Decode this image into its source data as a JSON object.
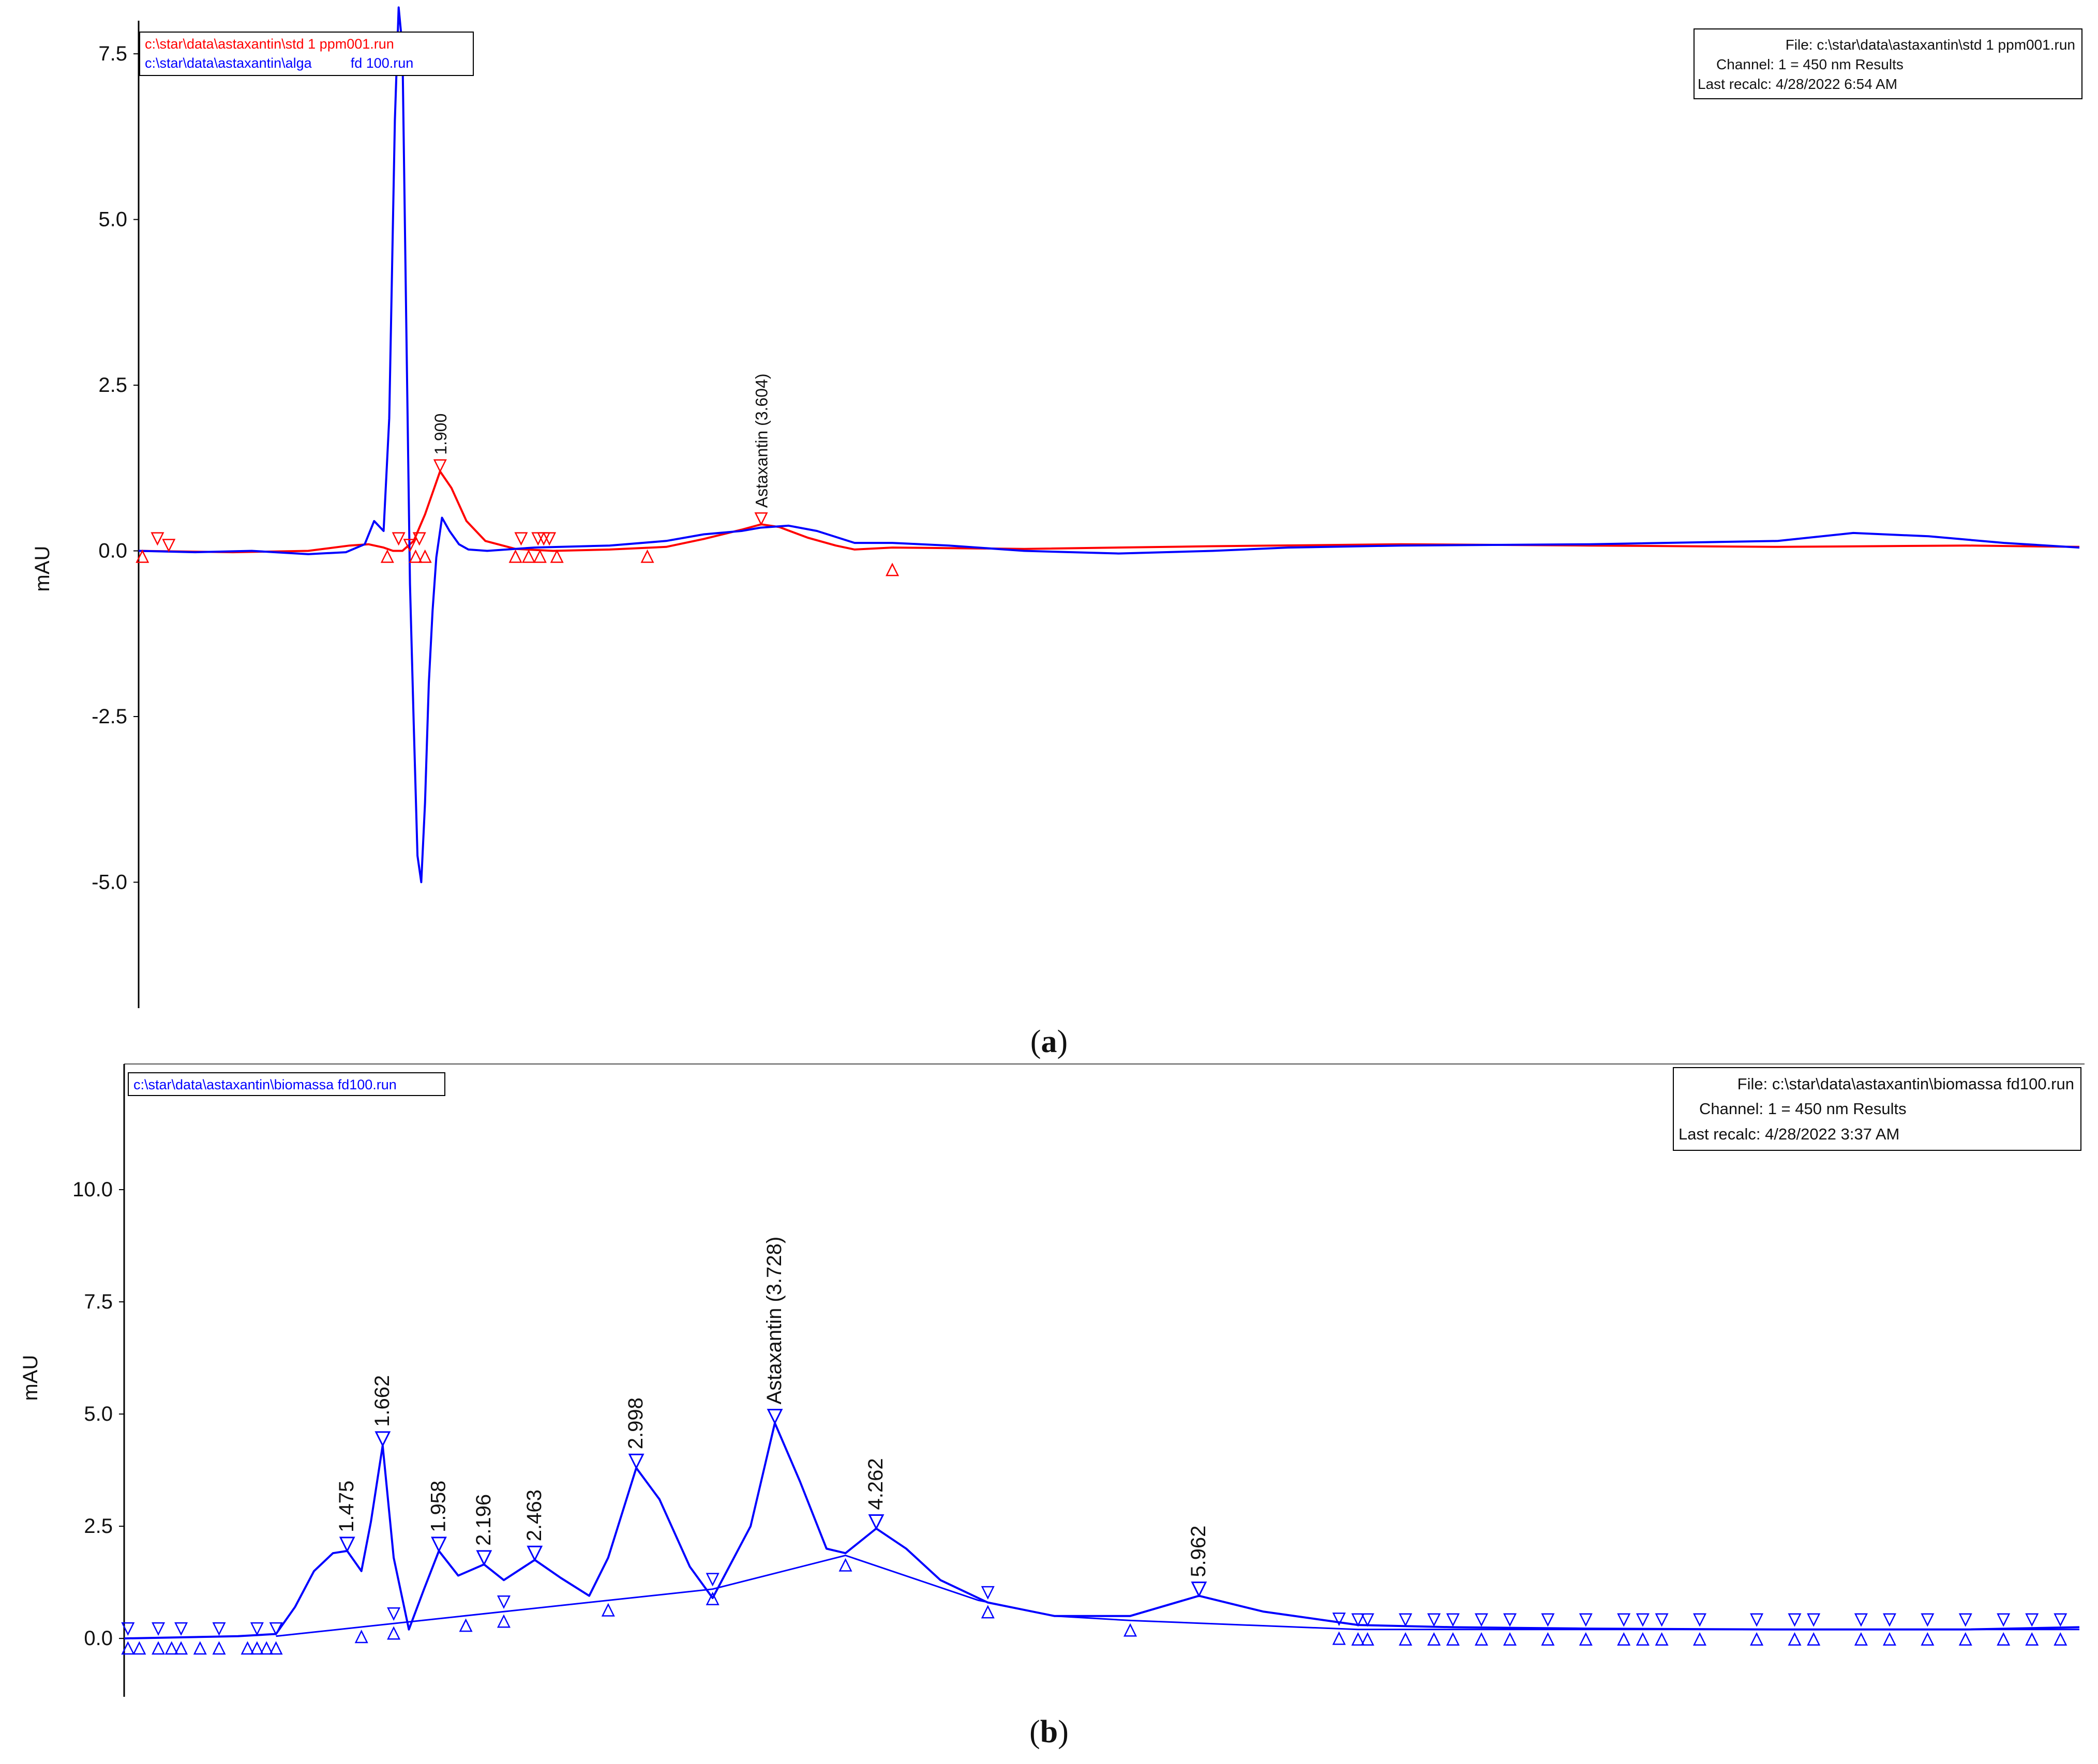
{
  "chart_data": [
    {
      "type": "line",
      "panel": "a",
      "caption_label": "a",
      "ylabel": "mAU",
      "ylim": [
        -6.9,
        8
      ],
      "xlim": [
        0.3,
        10.6
      ],
      "yticks": [
        "7.5",
        "5.0",
        "2.5",
        "0.0",
        "-2.5",
        "-5.0"
      ],
      "yticks_values": [
        7.5,
        5.0,
        2.5,
        0.0,
        -2.5,
        -5.0
      ],
      "legend_position": "top-left",
      "legend": [
        {
          "name": "c:\\star\\data\\astaxantin\\std 1 ppm001.run",
          "color": "#ff0000"
        },
        {
          "name": "c:\\star\\data\\astaxantin\\alga          fd 100.run",
          "color": "#0000ff"
        }
      ],
      "info_box": {
        "file": "File: c:\\star\\data\\astaxantin\\std 1 ppm001.run",
        "channel": "Channel: 1 = 450 nm Results",
        "recalc": "Last recalc: 4/28/2022 6:54 AM"
      },
      "series": [
        {
          "name": "c:\\star\\data\\astaxantin\\std 1 ppm001.run",
          "color": "#ff0000",
          "x": [
            0.3,
            0.8,
            1.2,
            1.42,
            1.52,
            1.6,
            1.65,
            1.7,
            1.76,
            1.82,
            1.9,
            1.96,
            2.04,
            2.14,
            2.3,
            2.5,
            2.8,
            3.1,
            3.3,
            3.5,
            3.604,
            3.7,
            3.85,
            4.0,
            4.1,
            4.3,
            5.0,
            6.0,
            7.0,
            8.0,
            9.0,
            10.0,
            10.6
          ],
          "y": [
            0.0,
            -0.02,
            0.0,
            0.08,
            0.1,
            0.05,
            0.0,
            0.0,
            0.15,
            0.55,
            1.2,
            0.95,
            0.45,
            0.15,
            0.03,
            0.0,
            0.02,
            0.06,
            0.18,
            0.32,
            0.4,
            0.36,
            0.2,
            0.08,
            0.02,
            0.05,
            0.03,
            0.07,
            0.1,
            0.08,
            0.06,
            0.08,
            0.06
          ]
        },
        {
          "name": "c:\\star\\data\\astaxantin\\alga          fd 100.run",
          "color": "#0000ff",
          "x": [
            0.3,
            0.6,
            0.9,
            1.2,
            1.4,
            1.5,
            1.55,
            1.6,
            1.63,
            1.66,
            1.68,
            1.7,
            1.72,
            1.74,
            1.76,
            1.78,
            1.8,
            1.82,
            1.84,
            1.86,
            1.88,
            1.91,
            1.95,
            2.0,
            2.05,
            2.15,
            2.4,
            2.8,
            3.1,
            3.3,
            3.5,
            3.6,
            3.75,
            3.9,
            4.1,
            4.3,
            4.6,
            5.0,
            5.5,
            6.0,
            6.4,
            7.0,
            8.0,
            9.0,
            9.4,
            9.8,
            10.2,
            10.6
          ],
          "y": [
            0.0,
            -0.02,
            0.0,
            -0.05,
            -0.02,
            0.1,
            0.45,
            0.3,
            2.0,
            6.5,
            8.2,
            7.6,
            3.5,
            -0.5,
            -2.6,
            -4.6,
            -5.0,
            -3.8,
            -2.0,
            -0.9,
            -0.1,
            0.5,
            0.3,
            0.1,
            0.02,
            0.0,
            0.05,
            0.08,
            0.15,
            0.25,
            0.3,
            0.35,
            0.38,
            0.3,
            0.12,
            0.12,
            0.08,
            0.0,
            -0.04,
            0.0,
            0.05,
            0.08,
            0.1,
            0.15,
            0.27,
            0.22,
            0.12,
            0.05
          ]
        }
      ],
      "peak_labels": [
        {
          "text": "1.900",
          "x": 1.9,
          "y": 1.2,
          "color": "#ff0000"
        },
        {
          "text": "Astaxantin (3.604)",
          "x": 3.604,
          "y": 0.4,
          "color": "#ff0000"
        }
      ],
      "markers": [
        {
          "x": 0.32,
          "y": 0.0,
          "color": "#ff0000",
          "dir": "up"
        },
        {
          "x": 0.4,
          "y": 0.1,
          "color": "#ff0000",
          "dir": "down"
        },
        {
          "x": 0.46,
          "y": 0.0,
          "color": "#ff0000",
          "dir": "down"
        },
        {
          "x": 1.62,
          "y": 0.0,
          "color": "#ff0000",
          "dir": "up"
        },
        {
          "x": 1.68,
          "y": 0.1,
          "color": "#ff0000",
          "dir": "down"
        },
        {
          "x": 1.74,
          "y": 0.0,
          "color": "#ff0000",
          "dir": "down"
        },
        {
          "x": 1.77,
          "y": 0.0,
          "color": "#ff0000",
          "dir": "up"
        },
        {
          "x": 1.79,
          "y": 0.1,
          "color": "#ff0000",
          "dir": "down"
        },
        {
          "x": 1.82,
          "y": 0.0,
          "color": "#ff0000",
          "dir": "up"
        },
        {
          "x": 1.9,
          "y": 1.2,
          "color": "#ff0000",
          "dir": "down"
        },
        {
          "x": 2.3,
          "y": 0.0,
          "color": "#ff0000",
          "dir": "up"
        },
        {
          "x": 2.33,
          "y": 0.1,
          "color": "#ff0000",
          "dir": "down"
        },
        {
          "x": 2.37,
          "y": 0.0,
          "color": "#ff0000",
          "dir": "up"
        },
        {
          "x": 2.42,
          "y": 0.1,
          "color": "#ff0000",
          "dir": "down"
        },
        {
          "x": 2.45,
          "y": 0.1,
          "color": "#ff0000",
          "dir": "down"
        },
        {
          "x": 2.43,
          "y": 0.0,
          "color": "#ff0000",
          "dir": "up"
        },
        {
          "x": 2.48,
          "y": 0.1,
          "color": "#ff0000",
          "dir": "down"
        },
        {
          "x": 2.52,
          "y": 0.0,
          "color": "#ff0000",
          "dir": "up"
        },
        {
          "x": 3.0,
          "y": 0.0,
          "color": "#ff0000",
          "dir": "up"
        },
        {
          "x": 3.604,
          "y": 0.4,
          "color": "#ff0000",
          "dir": "down"
        },
        {
          "x": 4.3,
          "y": -0.2,
          "color": "#ff0000",
          "dir": "up"
        }
      ]
    },
    {
      "type": "line",
      "panel": "b",
      "caption_label": "b",
      "ylabel": "mAU",
      "ylim": [
        -1.3,
        12.8
      ],
      "xlim": [
        0.3,
        10.6
      ],
      "yticks": [
        "10.0",
        "7.5",
        "5.0",
        "2.5",
        "0.0"
      ],
      "yticks_values": [
        10.0,
        7.5,
        5.0,
        2.5,
        0.0
      ],
      "legend_position": "top-left",
      "legend": [
        {
          "name": "c:\\star\\data\\astaxantin\\biomassa fd100.run",
          "color": "#0000ff"
        }
      ],
      "info_box": {
        "file": "File: c:\\star\\data\\astaxantin\\biomassa fd100.run",
        "channel": "Channel: 1 = 450 nm Results",
        "recalc": "Last recalc: 4/28/2022 3:37 AM"
      },
      "series": [
        {
          "name": "c:\\star\\data\\astaxantin\\biomassa fd100.run",
          "color": "#0000ff",
          "x": [
            0.3,
            0.9,
            1.1,
            1.2,
            1.3,
            1.4,
            1.475,
            1.55,
            1.6,
            1.662,
            1.72,
            1.8,
            1.88,
            1.958,
            2.06,
            2.196,
            2.3,
            2.463,
            2.6,
            2.75,
            2.85,
            2.998,
            3.12,
            3.28,
            3.4,
            3.6,
            3.728,
            3.86,
            4.0,
            4.1,
            4.262,
            4.42,
            4.6,
            4.85,
            5.2,
            5.6,
            5.962,
            6.3,
            6.8,
            7.3,
            8.0,
            9.0,
            10.0,
            10.6
          ],
          "y": [
            0.0,
            0.05,
            0.1,
            0.7,
            1.5,
            1.9,
            1.95,
            1.5,
            2.6,
            4.3,
            1.8,
            0.2,
            1.1,
            1.95,
            1.4,
            1.65,
            1.3,
            1.75,
            1.35,
            0.95,
            1.8,
            3.8,
            3.1,
            1.6,
            0.9,
            2.5,
            4.8,
            3.5,
            2.0,
            1.9,
            2.45,
            2.0,
            1.3,
            0.8,
            0.5,
            0.5,
            0.95,
            0.6,
            0.3,
            0.25,
            0.22,
            0.2,
            0.2,
            0.25
          ]
        }
      ],
      "baseline": {
        "x": [
          1.1,
          3.4,
          4.1,
          4.8,
          5.2,
          5.6,
          6.8,
          10.6
        ],
        "y": [
          0.05,
          1.1,
          1.85,
          0.85,
          0.5,
          0.4,
          0.2,
          0.2
        ]
      },
      "peak_labels": [
        {
          "text": "1.475",
          "x": 1.475,
          "y": 1.95,
          "color": "#000000"
        },
        {
          "text": "1.662",
          "x": 1.662,
          "y": 4.3,
          "color": "#000000"
        },
        {
          "text": "1.958",
          "x": 1.958,
          "y": 1.95,
          "color": "#000000"
        },
        {
          "text": "2.196",
          "x": 2.196,
          "y": 1.65,
          "color": "#000000"
        },
        {
          "text": "2.463",
          "x": 2.463,
          "y": 1.75,
          "color": "#000000"
        },
        {
          "text": "2.998",
          "x": 2.998,
          "y": 3.8,
          "color": "#000000"
        },
        {
          "text": "Astaxantin (3.728)",
          "x": 3.728,
          "y": 4.8,
          "color": "#000000"
        },
        {
          "text": "4.262",
          "x": 4.262,
          "y": 2.45,
          "color": "#000000"
        },
        {
          "text": "5.962",
          "x": 5.962,
          "y": 0.95,
          "color": "#000000"
        }
      ]
    }
  ]
}
